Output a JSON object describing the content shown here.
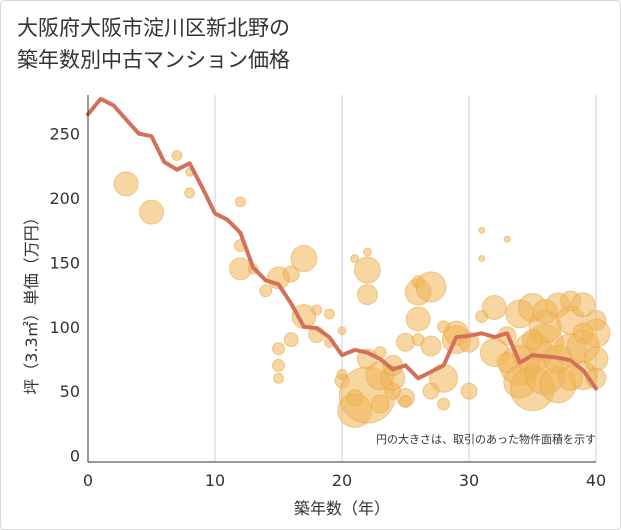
{
  "chart_data": {
    "type": "scatter",
    "title_lines": [
      "大阪府大阪市淀川区新北野の",
      "築年数別中古マンション価格"
    ],
    "xlabel": "築年数（年）",
    "ylabel": "坪（3.3㎡）単価（万円）",
    "xlim": [
      0,
      40
    ],
    "ylim": [
      -5,
      280
    ],
    "xticks": [
      0,
      10,
      20,
      30,
      40
    ],
    "yticks": [
      0,
      50,
      100,
      150,
      200,
      250
    ],
    "grid": "x-only",
    "note": "円の大きさは、取引のあった物件面積を示す",
    "colors": {
      "bubble": "#f0b456",
      "bubble_edge": "#e6a23a",
      "line": "#d2705a",
      "grid": "#c8d2dc",
      "axis": "#333333"
    },
    "series": [
      {
        "type": "line",
        "x": [
          0,
          1,
          2,
          3,
          4,
          5,
          6,
          7,
          8,
          9,
          10,
          11,
          12,
          13,
          14,
          15,
          16,
          17,
          18,
          19,
          20,
          21,
          22,
          23,
          24,
          25,
          26,
          27,
          28,
          29,
          30,
          31,
          32,
          33,
          34,
          35,
          36,
          37,
          38,
          39,
          40
        ],
        "y": [
          265,
          277,
          272,
          261,
          250,
          248,
          228,
          222,
          227,
          208,
          188,
          183,
          173,
          146,
          136,
          133,
          118,
          100,
          99,
          92,
          78,
          82,
          80,
          75,
          67,
          70,
          60,
          65,
          70,
          92,
          93,
          95,
          92,
          95,
          72,
          78,
          77,
          76,
          74,
          66,
          52
        ]
      },
      {
        "type": "bubble",
        "points": [
          [
            3,
            211,
            12
          ],
          [
            5,
            189,
            12
          ],
          [
            7,
            233,
            5
          ],
          [
            8,
            204,
            5
          ],
          [
            8,
            220,
            4
          ],
          [
            12,
            197,
            5
          ],
          [
            12,
            145,
            11
          ],
          [
            12,
            163,
            6
          ],
          [
            13,
            145,
            5
          ],
          [
            14,
            128,
            6
          ],
          [
            15,
            138,
            11
          ],
          [
            16,
            141,
            8
          ],
          [
            17,
            153,
            13
          ],
          [
            17,
            108,
            12
          ],
          [
            15,
            83,
            6
          ],
          [
            15,
            70,
            6
          ],
          [
            15,
            60,
            5
          ],
          [
            16,
            90,
            7
          ],
          [
            18,
            113,
            5
          ],
          [
            18,
            94,
            8
          ],
          [
            19,
            110,
            5
          ],
          [
            19,
            88,
            5
          ],
          [
            20,
            97,
            4
          ],
          [
            20,
            58,
            7
          ],
          [
            20,
            63,
            5
          ],
          [
            21,
            35,
            17
          ],
          [
            22,
            144,
            13
          ],
          [
            22,
            125,
            10
          ],
          [
            22,
            158,
            4
          ],
          [
            21,
            153,
            4
          ],
          [
            22,
            47,
            28
          ],
          [
            22,
            75,
            10
          ],
          [
            23,
            62,
            14
          ],
          [
            23,
            80,
            6
          ],
          [
            24,
            50,
            8
          ],
          [
            24,
            60,
            12
          ],
          [
            24,
            70,
            10
          ],
          [
            25,
            88,
            9
          ],
          [
            25,
            45,
            9
          ],
          [
            25,
            42,
            6
          ],
          [
            26,
            127,
            13
          ],
          [
            26,
            106,
            12
          ],
          [
            26,
            135,
            6
          ],
          [
            26,
            90,
            6
          ],
          [
            27,
            131,
            15
          ],
          [
            27,
            85,
            10
          ],
          [
            28,
            60,
            14
          ],
          [
            28,
            100,
            6
          ],
          [
            28,
            40,
            6
          ],
          [
            29,
            90,
            14
          ],
          [
            29,
            95,
            12
          ],
          [
            30,
            50,
            8
          ],
          [
            30,
            88,
            10
          ],
          [
            31,
            175,
            3
          ],
          [
            31,
            153,
            3
          ],
          [
            31,
            108,
            6
          ],
          [
            32,
            115,
            12
          ],
          [
            32,
            80,
            14
          ],
          [
            33,
            168,
            3
          ],
          [
            33,
            93,
            9
          ],
          [
            34,
            110,
            14
          ],
          [
            34,
            70,
            20
          ],
          [
            34,
            57,
            16
          ],
          [
            35,
            52,
            22
          ],
          [
            35,
            80,
            20
          ],
          [
            35,
            115,
            14
          ],
          [
            36,
            63,
            20
          ],
          [
            36,
            88,
            18
          ],
          [
            36,
            100,
            16
          ],
          [
            36,
            112,
            12
          ],
          [
            37,
            117,
            12
          ],
          [
            37,
            55,
            18
          ],
          [
            37,
            75,
            14
          ],
          [
            38,
            105,
            14
          ],
          [
            38,
            82,
            16
          ],
          [
            38,
            120,
            10
          ],
          [
            39,
            85,
            16
          ],
          [
            39,
            62,
            14
          ],
          [
            39,
            95,
            10
          ],
          [
            39,
            117,
            12
          ],
          [
            40,
            105,
            10
          ],
          [
            40,
            95,
            14
          ],
          [
            40,
            75,
            12
          ],
          [
            40,
            60,
            10
          ],
          [
            38,
            60,
            12
          ],
          [
            35,
            90,
            10
          ],
          [
            33,
            72,
            10
          ],
          [
            21,
            45,
            8
          ],
          [
            23,
            40,
            9
          ],
          [
            27,
            50,
            8
          ]
        ]
      }
    ]
  }
}
